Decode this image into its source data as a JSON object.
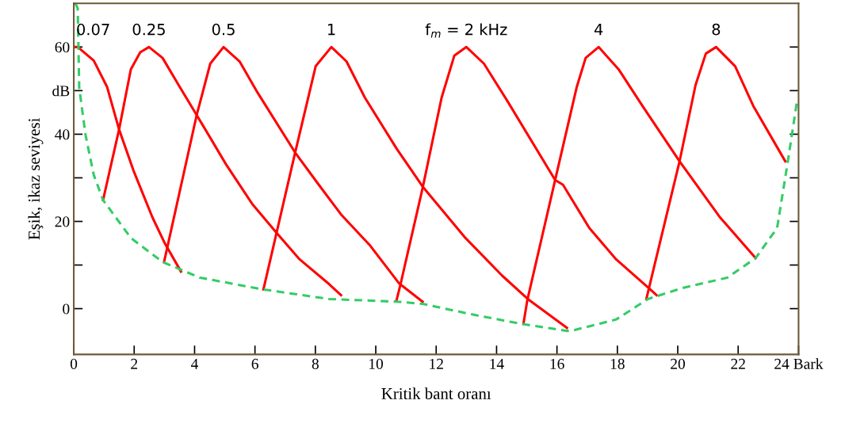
{
  "chart_data": {
    "type": "line",
    "xlabel": "Kritik bant oranı",
    "ylabel": "Eşik, ikaz seviyesi",
    "xlim": [
      0,
      24
    ],
    "ylim": [
      -10.5,
      70
    ],
    "xticks": [
      0,
      2,
      4,
      6,
      8,
      10,
      12,
      14,
      16,
      18,
      20,
      22,
      {
        "value": 24,
        "label": "24 Bark"
      }
    ],
    "yticks": [
      0,
      {
        "value": 10,
        "label": null
      },
      20,
      {
        "value": 30,
        "label": null
      },
      40,
      {
        "value": 50,
        "label": "dB"
      },
      60
    ],
    "grid": false,
    "legend": false,
    "marker": "none",
    "series": [
      {
        "name": "0.07",
        "color": "#ff0000",
        "line_style": "solid",
        "x": [
          0.05,
          0.13,
          0.66,
          1.1,
          1.5,
          1.97,
          2.6,
          3.02,
          3.55
        ],
        "values": [
          60,
          60,
          56.9,
          50.9,
          41.1,
          31.8,
          21,
          14.9,
          8.5
        ]
      },
      {
        "name": "0.25",
        "color": "#ff0000",
        "line_style": "solid",
        "x": [
          0.97,
          1.5,
          1.89,
          2.2,
          2.49,
          2.94,
          3.47,
          4.07,
          5.04,
          5.91,
          6.7,
          7.48,
          8.46,
          8.85
        ],
        "values": [
          24.9,
          41.1,
          54.9,
          58.8,
          60,
          57.5,
          51.3,
          44.4,
          33.1,
          24,
          17.5,
          11.3,
          5.6,
          3.1
        ]
      },
      {
        "name": "0.5",
        "color": "#ff0000",
        "line_style": "solid",
        "x": [
          2.99,
          4.07,
          4.52,
          4.96,
          5.49,
          6.09,
          7.33,
          8.06,
          8.85,
          9.82,
          10.77,
          11.55
        ],
        "values": [
          10.7,
          44.4,
          56.2,
          60,
          56.7,
          49.5,
          35.8,
          28.9,
          21.6,
          14.4,
          5.8,
          1.6
        ]
      },
      {
        "name": "1",
        "color": "#ff0000",
        "line_style": "solid",
        "x": [
          6.28,
          7.33,
          8.01,
          8.53,
          9.03,
          9.64,
          10.69,
          11.55,
          12.97,
          14.18,
          15.07,
          16.33
        ],
        "values": [
          4.4,
          35.8,
          55.6,
          60,
          56.7,
          48.4,
          36.7,
          28,
          16.2,
          7.6,
          2,
          -4.4
        ]
      },
      {
        "name": "f$_{m}$ = 2 kHz",
        "color": "#ff0000",
        "line_style": "solid",
        "x": [
          10.69,
          10.82,
          11.55,
          12.18,
          12.6,
          13.0,
          13.58,
          14.36,
          15.94,
          16.2,
          17.07,
          17.96,
          19.01,
          19.3
        ],
        "values": [
          2,
          5.6,
          27.6,
          48.4,
          58,
          60,
          56.2,
          47.6,
          29.5,
          28.4,
          18.5,
          11.3,
          4.9,
          3.1
        ]
      },
      {
        "name": "4",
        "color": "#ff0000",
        "line_style": "solid",
        "x": [
          14.89,
          15.02,
          15.94,
          16.65,
          16.95,
          17.38,
          18.04,
          18.83,
          20.06,
          21.38,
          22.58
        ],
        "values": [
          -3.5,
          2,
          29.5,
          50.7,
          57.5,
          60,
          54.9,
          46.5,
          33.8,
          21.1,
          11.6
        ]
      },
      {
        "name": "8",
        "color": "#ff0000",
        "line_style": "solid",
        "x": [
          18.96,
          20.06,
          20.59,
          20.93,
          21.27,
          21.9,
          22.5,
          23.56
        ],
        "values": [
          2.2,
          33.8,
          51.3,
          58.5,
          60,
          55.6,
          46.5,
          33.8
        ]
      },
      {
        "color": "#33cc66",
        "line_style": "dashed",
        "x": [
          0.05,
          0.13,
          0.18,
          0.39,
          0.66,
          0.97,
          1.89,
          2.94,
          4.18,
          6.28,
          8.46,
          10.69,
          11.55,
          13.31,
          14.84,
          16.33,
          16.47,
          17.96,
          19.01,
          20.14,
          21.64,
          22.58,
          23.29,
          23.63,
          23.95
        ],
        "values": [
          70,
          68.9,
          50.7,
          39.8,
          30.7,
          24.9,
          16.2,
          10.7,
          7.1,
          4.4,
          2.2,
          1.6,
          1.1,
          -1.5,
          -3.5,
          -5.1,
          -5.1,
          -2.5,
          2.2,
          4.7,
          7.1,
          11.6,
          18.5,
          33.1,
          47.6
        ]
      }
    ]
  }
}
